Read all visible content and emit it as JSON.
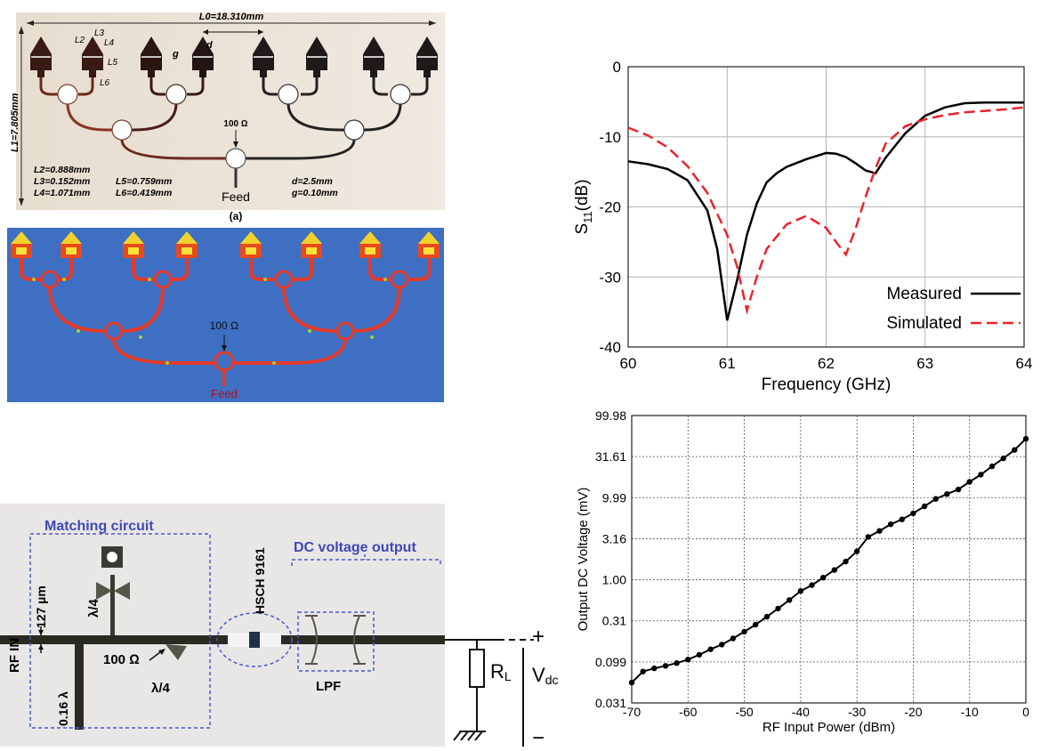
{
  "fig_a": {
    "L0": "L0=18.310mm",
    "L1": "L1=7.805mm",
    "L2tag": "L2",
    "L3tag": "L3",
    "L4tag": "L4",
    "L5tag": "L5",
    "L6tag": "L6",
    "d_tag": "d",
    "g_tag": "g",
    "ohm": "100 Ω",
    "feed": "Feed",
    "caption": "(a)",
    "dims": [
      "L2=0.888mm",
      "L3=0.152mm",
      "L4=1.071mm",
      "L5=0.759mm",
      "L6=0.419mm",
      "d=2.5mm",
      "g=0.10mm"
    ]
  },
  "fig_sim": {
    "ohm": "100 Ω",
    "feed": "Feed"
  },
  "fig_circuit": {
    "matching": "Matching circuit",
    "dc_output": "DC voltage output",
    "diode": "HSCH 9161",
    "rf_in": "RF  IN",
    "width": "127 µm",
    "lambda4_top": "λ/4",
    "lambda4_bottom": "λ/4",
    "ohm": "100 Ω",
    "lambda016": "0.16 λ",
    "lpf": "LPF",
    "rl": "R",
    "rl_sub": "L",
    "vdc": "V",
    "vdc_sub": "dc",
    "plus": "+",
    "minus": "−"
  },
  "chart_data": [
    {
      "type": "line",
      "xlabel": "Frequency (GHz)",
      "ylabel": "S11(dB)",
      "xlim": [
        60,
        64
      ],
      "ylim": [
        -40,
        0
      ],
      "xticks": [
        "60",
        "61",
        "62",
        "63",
        "64"
      ],
      "yticks": [
        "0",
        "-10",
        "-20",
        "-30",
        "-40"
      ],
      "grid": true,
      "legend": "bottom-right",
      "series": [
        {
          "name": "Measured",
          "color": "#000000",
          "style": "solid",
          "x": [
            60,
            60.2,
            60.4,
            60.6,
            60.8,
            60.9,
            61.0,
            61.1,
            61.2,
            61.3,
            61.4,
            61.5,
            61.6,
            61.8,
            62.0,
            62.1,
            62.2,
            62.3,
            62.4,
            62.5,
            62.6,
            62.8,
            63.0,
            63.2,
            63.4,
            63.6,
            63.8,
            64.0
          ],
          "y": [
            -13.5,
            -13.9,
            -14.6,
            -16.2,
            -20.5,
            -26.0,
            -36.2,
            -30.5,
            -24.0,
            -19.5,
            -16.5,
            -15.2,
            -14.3,
            -13.2,
            -12.3,
            -12.4,
            -12.9,
            -13.8,
            -14.8,
            -15.2,
            -13.0,
            -9.5,
            -7.0,
            -5.8,
            -5.2,
            -5.1,
            -5.1,
            -5.1
          ]
        },
        {
          "name": "Simulated",
          "color": "#e8242b",
          "style": "dashed",
          "x": [
            60,
            60.2,
            60.4,
            60.6,
            60.8,
            61.0,
            61.1,
            61.2,
            61.3,
            61.4,
            61.6,
            61.8,
            62.0,
            62.1,
            62.2,
            62.3,
            62.4,
            62.5,
            62.6,
            62.8,
            63.0,
            63.2,
            63.4,
            63.6,
            63.8,
            64.0
          ],
          "y": [
            -8.7,
            -9.8,
            -11.5,
            -14.2,
            -18.0,
            -24.0,
            -28.5,
            -34.8,
            -30.0,
            -26.0,
            -22.5,
            -21.3,
            -23.0,
            -25.0,
            -26.8,
            -23.0,
            -18.5,
            -14.5,
            -11.0,
            -8.5,
            -7.5,
            -6.9,
            -6.5,
            -6.3,
            -6.1,
            -5.8
          ]
        }
      ]
    },
    {
      "type": "line",
      "scale": "log-y",
      "xlabel": "RF Input Power (dBm)",
      "ylabel": "Output DC Voltage (mV)",
      "xlim": [
        -70,
        0
      ],
      "ylim": [
        0.031,
        99.98
      ],
      "xticks": [
        "-70",
        "-60",
        "-50",
        "-40",
        "-30",
        "-20",
        "-10",
        "0"
      ],
      "yticks": [
        "99.98",
        "31.61",
        "9.99",
        "3.16",
        "1.00",
        "0.31",
        "0.099",
        "0.031"
      ],
      "grid": true,
      "series": [
        {
          "name": "",
          "color": "#000000",
          "markers": true,
          "x": [
            -70,
            -68,
            -66,
            -64,
            -62,
            -60,
            -58,
            -56,
            -54,
            -52,
            -50,
            -48,
            -46,
            -44,
            -42,
            -40,
            -38,
            -36,
            -34,
            -32,
            -30,
            -28,
            -26,
            -24,
            -22,
            -20,
            -18,
            -16,
            -14,
            -12,
            -10,
            -8,
            -6,
            -4,
            -2,
            0
          ],
          "y": [
            0.055,
            0.075,
            0.082,
            0.088,
            0.095,
            0.105,
            0.12,
            0.14,
            0.16,
            0.19,
            0.23,
            0.28,
            0.35,
            0.44,
            0.56,
            0.72,
            0.85,
            1.05,
            1.3,
            1.65,
            2.2,
            3.3,
            3.9,
            4.7,
            5.4,
            6.4,
            7.8,
            9.6,
            11.0,
            12.5,
            15.5,
            19.0,
            24.0,
            30.0,
            38.0,
            52.0
          ]
        }
      ]
    }
  ]
}
